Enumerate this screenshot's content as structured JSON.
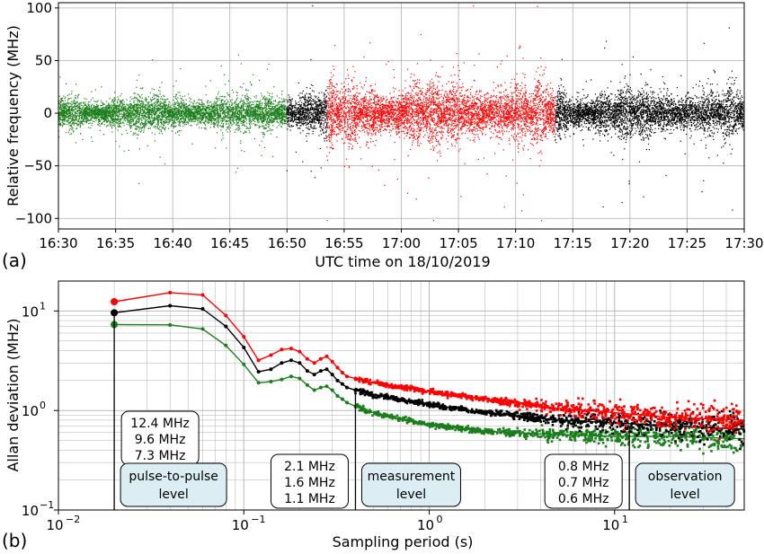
{
  "figure": {
    "panel_a_label": "(a)",
    "panel_b_label": "(b)",
    "colors": {
      "green": "#1a7f1a",
      "black": "#000000",
      "red": "#ff0000",
      "box_fill": "#dceef4",
      "grid": "#b0b0b0"
    }
  },
  "chart_data": [
    {
      "type": "scatter",
      "panel": "(a)",
      "xlabel": "UTC time on 18/10/2019",
      "ylabel": "Relative frequency (MHz)",
      "x_ticks": [
        "16:30",
        "16:35",
        "16:40",
        "16:45",
        "16:50",
        "16:55",
        "17:00",
        "17:05",
        "17:10",
        "17:15",
        "17:20",
        "17:25",
        "17:30"
      ],
      "y_ticks": [
        "100",
        "50",
        "0",
        "−50",
        "−100"
      ],
      "xlim": [
        "16:30",
        "17:30"
      ],
      "ylim": [
        -110,
        105
      ],
      "grid": true,
      "segments": [
        {
          "color": "green",
          "start": "16:30",
          "end": "16:50",
          "sigma_MHz": 7.3
        },
        {
          "color": "black",
          "start": "16:50",
          "end": "16:53.5",
          "sigma_MHz": 9.6
        },
        {
          "color": "red",
          "start": "16:53.5",
          "end": "17:13.5",
          "sigma_MHz": 12.4
        },
        {
          "color": "black",
          "start": "17:13.5",
          "end": "17:30",
          "sigma_MHz": 9.6
        }
      ]
    },
    {
      "type": "line",
      "panel": "(b)",
      "xlabel": "Sampling period (s)",
      "ylabel": "Allan deviation (MHz)",
      "xscale": "log",
      "yscale": "log",
      "xlim": [
        0.01,
        50
      ],
      "ylim": [
        0.1,
        20
      ],
      "grid": true,
      "x_tick_labels": [
        "10",
        "10",
        "10",
        "10"
      ],
      "x_tick_exponents": [
        "−2",
        "−1",
        "0",
        "1"
      ],
      "y_tick_labels": [
        "10",
        "10",
        "10"
      ],
      "y_tick_exponents": [
        "−1",
        "0",
        "1"
      ],
      "series": [
        {
          "color": "red",
          "x": [
            0.02,
            0.04,
            0.06,
            0.08,
            0.1,
            0.12,
            0.14,
            0.16,
            0.18,
            0.2,
            0.22,
            0.24,
            0.26,
            0.28,
            0.3,
            0.32,
            0.34,
            0.36,
            0.4,
            0.5,
            1,
            2,
            5,
            10,
            20,
            50
          ],
          "values": [
            12.4,
            15.3,
            14.5,
            9.0,
            5.5,
            3.2,
            3.6,
            4.1,
            4.2,
            3.9,
            3.3,
            3.0,
            3.3,
            3.5,
            3.1,
            2.7,
            2.4,
            2.2,
            2.1,
            1.9,
            1.55,
            1.3,
            1.05,
            0.95,
            0.85,
            0.8
          ]
        },
        {
          "color": "black",
          "x": [
            0.02,
            0.04,
            0.06,
            0.08,
            0.1,
            0.12,
            0.14,
            0.16,
            0.18,
            0.2,
            0.22,
            0.24,
            0.26,
            0.28,
            0.3,
            0.32,
            0.34,
            0.36,
            0.4,
            0.5,
            1,
            2,
            5,
            10,
            20,
            50
          ],
          "values": [
            9.6,
            11.3,
            10.5,
            7.0,
            4.3,
            2.45,
            2.6,
            3.0,
            3.2,
            3.0,
            2.5,
            2.3,
            2.5,
            2.6,
            2.3,
            2.0,
            1.85,
            1.7,
            1.6,
            1.45,
            1.15,
            0.95,
            0.8,
            0.75,
            0.7,
            0.65
          ]
        },
        {
          "color": "green",
          "x": [
            0.02,
            0.04,
            0.06,
            0.08,
            0.1,
            0.12,
            0.14,
            0.16,
            0.18,
            0.2,
            0.22,
            0.24,
            0.26,
            0.28,
            0.3,
            0.32,
            0.34,
            0.36,
            0.4,
            0.5,
            1,
            2,
            5,
            10,
            20,
            50
          ],
          "values": [
            7.3,
            7.25,
            6.6,
            4.5,
            2.9,
            1.9,
            1.95,
            2.05,
            2.2,
            2.1,
            1.8,
            1.6,
            1.7,
            1.75,
            1.6,
            1.4,
            1.3,
            1.2,
            1.1,
            0.95,
            0.72,
            0.62,
            0.57,
            0.55,
            0.55,
            0.52
          ]
        }
      ],
      "markers": [
        {
          "x": 0.02,
          "lines": [
            "12.4 MHz",
            "9.6 MHz",
            "7.3 MHz"
          ],
          "label": [
            "pulse-to-pulse",
            "level"
          ]
        },
        {
          "x": 0.4,
          "lines": [
            "2.1 MHz",
            "1.6 MHz",
            "1.1 MHz"
          ],
          "label": [
            "measurement",
            "level"
          ]
        },
        {
          "x": 12,
          "lines": [
            "0.8 MHz",
            "0.7 MHz",
            "0.6 MHz"
          ],
          "label": [
            "observation",
            "level"
          ]
        }
      ],
      "marker_line_colors": [
        "red",
        "black",
        "green"
      ]
    }
  ]
}
